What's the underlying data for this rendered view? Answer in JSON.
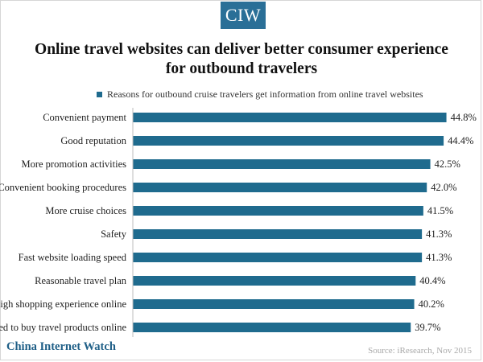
{
  "logo": {
    "text": "CIW"
  },
  "title": "Online travel websites can deliver better consumer experience for outbound travelers",
  "footer": {
    "watermark": "China Internet Watch",
    "source": "Source: iResearch, Nov 2015"
  },
  "colors": {
    "bar": "#1f6b8e",
    "logo_bg": "#2a6f97",
    "watermark": "#1f5f87"
  },
  "chart_data": {
    "type": "bar",
    "orientation": "horizontal",
    "legend_position": "top",
    "grid": false,
    "xlim": [
      0,
      46
    ],
    "categories": [
      "Convenient payment",
      "Good reputation",
      "More promotion activities",
      "Convenient booking procedures",
      "More cruise choices",
      "Safety",
      "Fast website loading speed",
      "Reasonable travel plan",
      "High shopping experience online",
      "Used to buy travel products online"
    ],
    "series": [
      {
        "name": "Reasons for outbound cruise travelers get information from online travel websites",
        "values": [
          44.8,
          44.4,
          42.5,
          42.0,
          41.5,
          41.3,
          41.3,
          40.4,
          40.2,
          39.7
        ],
        "labels": [
          "44.8%",
          "44.4%",
          "42.5%",
          "42.0%",
          "41.5%",
          "41.3%",
          "41.3%",
          "40.4%",
          "40.2%",
          "39.7%"
        ]
      }
    ]
  }
}
